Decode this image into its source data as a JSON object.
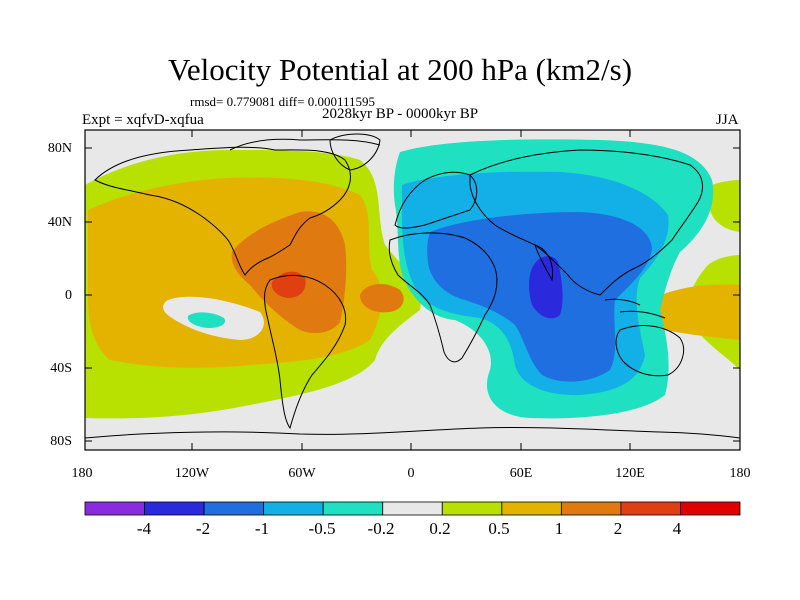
{
  "title": "Velocity Potential at 200 hPa (km2/s)",
  "stats_line": "rmsd= 0.779081 diff= 0.000111595",
  "period": "2028kyr BP - 0000kyr BP",
  "experiment": "Expt = xqfvD-xqfua",
  "season": "JJA",
  "lat_labels": [
    "80N",
    "40N",
    "0",
    "40S",
    "80S"
  ],
  "lon_labels": [
    "180",
    "120W",
    "60W",
    "0",
    "60E",
    "120E",
    "180"
  ],
  "colorbar": {
    "labels": [
      "-4",
      "-2",
      "-1",
      "-0.5",
      "-0.2",
      "0.2",
      "0.5",
      "1",
      "2",
      "4"
    ],
    "colors": [
      "#8a2be2",
      "#2a2adc",
      "#1f6fe0",
      "#12b0e6",
      "#1fe0c0",
      "#e8e8e8",
      "#b8e000",
      "#e4b300",
      "#e07a10",
      "#e04010",
      "#e00000"
    ]
  }
}
